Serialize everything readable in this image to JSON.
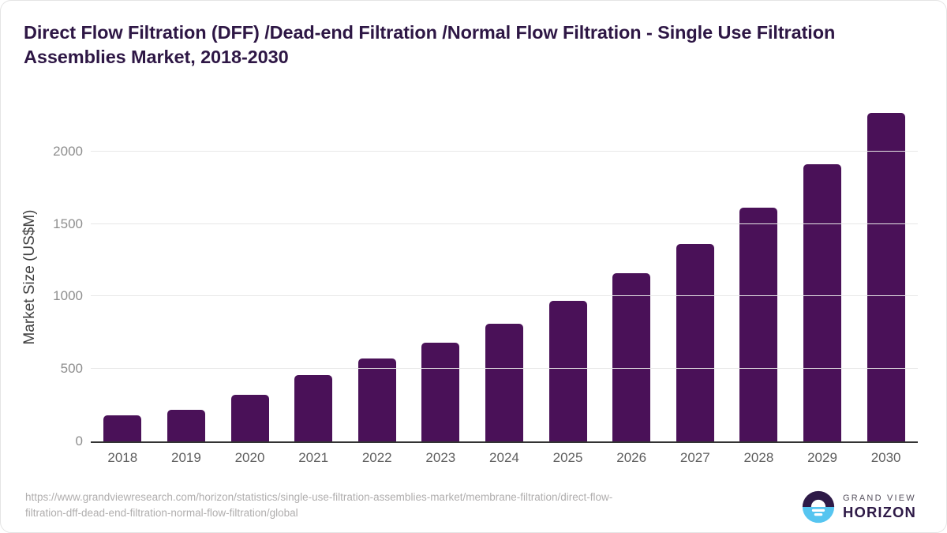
{
  "chart_data": {
    "type": "bar",
    "title": "Direct Flow Filtration (DFF) /Dead-end Filtration /Normal Flow Filtration - Single Use Filtration Assemblies Market, 2018-2030",
    "categories": [
      "2018",
      "2019",
      "2020",
      "2021",
      "2022",
      "2023",
      "2024",
      "2025",
      "2026",
      "2027",
      "2028",
      "2029",
      "2030"
    ],
    "values": [
      181,
      220,
      323,
      459,
      570,
      680,
      814,
      970,
      1158,
      1360,
      1614,
      1913,
      2265
    ],
    "xlabel": "",
    "ylabel": "Market Size (US$M)",
    "ylim": [
      0,
      2265
    ],
    "yticks": [
      0,
      500,
      1000,
      1500,
      2000
    ],
    "grid": true,
    "legend": false,
    "bar_color": "#4a1158"
  },
  "footer": {
    "source_url_lines": [
      "https://www.grandviewresearch.com/horizon/statistics/single-use-filtration-assemblies-market/membrane-filtration/direct-flow-",
      "filtration-dff-dead-end-filtration-normal-flow-filtration/global"
    ],
    "logo": {
      "brand_line1": "GRAND VIEW",
      "brand_line2": "HORIZON"
    }
  },
  "colors": {
    "bar": "#4a1158",
    "title_text": "#2e1745",
    "axis_label": "#3f3f3f",
    "tick_label": "#8e8e8e",
    "x_label": "#5f5f5f",
    "gridline": "#e7e7e7",
    "baseline": "#333333",
    "url_text": "#b0aeae",
    "logo_dark": "#2e1a47",
    "logo_blue": "#56c5f0",
    "logo_gray": "#56515e"
  }
}
